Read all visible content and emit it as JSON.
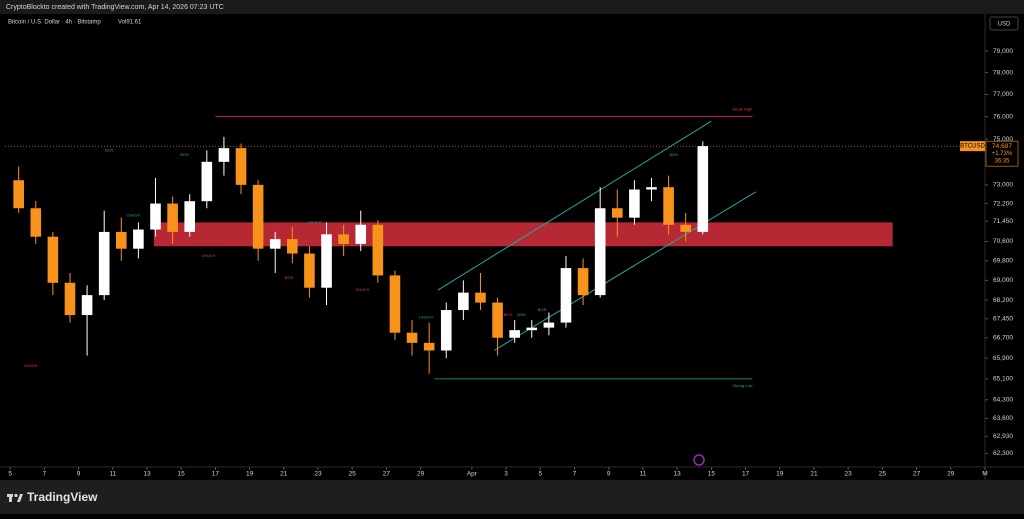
{
  "header": {
    "credit": "CryptoBlockto created with TradingView.com, Apr 14, 2026 07:23 UTC"
  },
  "footer": {
    "brand": "TradingView"
  },
  "chart_data": {
    "type": "candlestick",
    "title": "Bitcoin / U.S. Dollar · 4h · Bitstamp",
    "subtitle": "Vol91.61",
    "currency": "USD",
    "log_scale": true,
    "up_color": "#ffffff",
    "down_color": "#f7931a",
    "x": [
      0.5,
      1.5,
      2.5,
      3.5,
      4.5,
      5.5,
      6.5,
      7.5,
      8.5,
      9.5,
      10.5,
      11.5,
      12.5,
      13.5,
      14.5,
      15.5,
      16.5,
      17.5,
      18.5,
      19.5,
      20.5,
      21.5,
      22.5,
      23.5,
      24.5,
      25.5,
      26.5,
      27.5,
      28.5,
      29.5,
      30.5,
      31.5,
      32.5,
      33.5,
      34.5,
      35.5,
      36.5,
      37.5,
      38.5,
      39.5,
      40.5
    ],
    "open": [
      73200,
      72000,
      70800,
      68900,
      67600,
      68400,
      71000,
      70300,
      71100,
      72200,
      71000,
      72300,
      74000,
      74600,
      73000,
      70300,
      70700,
      70100,
      68700,
      70900,
      70500,
      71300,
      69200,
      66900,
      66500,
      66200,
      67800,
      68500,
      68100,
      66700,
      67000,
      67100,
      67300,
      69500,
      68400,
      72000,
      71600,
      72800,
      72900,
      71300,
      71000
    ],
    "high": [
      73800,
      72300,
      71000,
      69300,
      68800,
      71900,
      71600,
      71400,
      73300,
      72500,
      72600,
      74500,
      75100,
      74800,
      73200,
      71000,
      71200,
      70400,
      71400,
      71300,
      71900,
      71500,
      69400,
      67400,
      67300,
      68100,
      69000,
      69300,
      68300,
      67400,
      67400,
      67700,
      70000,
      69900,
      72900,
      72800,
      73200,
      73300,
      73400,
      71800,
      74900
    ],
    "low": [
      71800,
      70500,
      68400,
      67300,
      66000,
      68200,
      69800,
      69900,
      70800,
      70500,
      70800,
      72000,
      73400,
      72600,
      69800,
      69300,
      69700,
      68300,
      68000,
      70000,
      70200,
      68900,
      66600,
      66000,
      65300,
      65900,
      67400,
      67800,
      66000,
      66500,
      66700,
      66800,
      67100,
      68000,
      68300,
      70800,
      71300,
      72300,
      70900,
      70600,
      70900
    ],
    "close": [
      72000,
      70800,
      68900,
      67600,
      68400,
      71000,
      70300,
      71100,
      72200,
      71000,
      72300,
      74000,
      74600,
      73000,
      70300,
      70700,
      70100,
      68700,
      70900,
      70500,
      71300,
      69200,
      66900,
      66500,
      66200,
      67800,
      68500,
      68100,
      66700,
      67000,
      67100,
      67300,
      69500,
      68400,
      72000,
      71600,
      72800,
      72900,
      71300,
      71000,
      74687
    ],
    "xlim": [
      -0.3,
      57
    ],
    "ylim": [
      61800,
      80700
    ],
    "xticks": [
      {
        "value": 0,
        "label": "5"
      },
      {
        "value": 2,
        "label": "7"
      },
      {
        "value": 4,
        "label": "9"
      },
      {
        "value": 6,
        "label": "11"
      },
      {
        "value": 8,
        "label": "13"
      },
      {
        "value": 10,
        "label": "15"
      },
      {
        "value": 12,
        "label": "17"
      },
      {
        "value": 14,
        "label": "19"
      },
      {
        "value": 16,
        "label": "21"
      },
      {
        "value": 18,
        "label": "23"
      },
      {
        "value": 20,
        "label": "25"
      },
      {
        "value": 22,
        "label": "27"
      },
      {
        "value": 24,
        "label": "29"
      },
      {
        "value": 27,
        "label": "Apr"
      },
      {
        "value": 29,
        "label": "3"
      },
      {
        "value": 31,
        "label": "5"
      },
      {
        "value": 33,
        "label": "7"
      },
      {
        "value": 35,
        "label": "9"
      },
      {
        "value": 37,
        "label": "11"
      },
      {
        "value": 39,
        "label": "13"
      },
      {
        "value": 41,
        "label": "15"
      },
      {
        "value": 43,
        "label": "17"
      },
      {
        "value": 45,
        "label": "19"
      },
      {
        "value": 47,
        "label": "21"
      },
      {
        "value": 49,
        "label": "23"
      },
      {
        "value": 51,
        "label": "25"
      },
      {
        "value": 53,
        "label": "27"
      },
      {
        "value": 55,
        "label": "29"
      },
      {
        "value": 57,
        "label": "M"
      }
    ],
    "yticks": [
      {
        "value": 79000,
        "label": "79,000"
      },
      {
        "value": 78000,
        "label": "78,000"
      },
      {
        "value": 77000,
        "label": "77,000"
      },
      {
        "value": 76000,
        "label": "76,000"
      },
      {
        "value": 75000,
        "label": "75,000"
      },
      {
        "value": 73000,
        "label": "73,000"
      },
      {
        "value": 72200,
        "label": "72,200"
      },
      {
        "value": 71450,
        "label": "71,450"
      },
      {
        "value": 70600,
        "label": "70,600"
      },
      {
        "value": 69800,
        "label": "69,800"
      },
      {
        "value": 69000,
        "label": "69,000"
      },
      {
        "value": 68200,
        "label": "68,200"
      },
      {
        "value": 67450,
        "label": "67,450"
      },
      {
        "value": 66700,
        "label": "66,700"
      },
      {
        "value": 65900,
        "label": "65,900"
      },
      {
        "value": 65100,
        "label": "65,100"
      },
      {
        "value": 64300,
        "label": "64,300"
      },
      {
        "value": 63600,
        "label": "63,600"
      },
      {
        "value": 62930,
        "label": "62,930"
      },
      {
        "value": 62300,
        "label": "62,300"
      }
    ],
    "levels": [
      {
        "name": "Weak High",
        "value": 76000,
        "x": [
          12,
          43.4
        ],
        "color": "#f23645"
      },
      {
        "name": "Strong Low",
        "value": 65100,
        "x": [
          24.8,
          43.4
        ],
        "color": "#26a69a"
      }
    ],
    "zone": {
      "x": [
        8.4,
        51.6
      ],
      "y": [
        70400,
        71400
      ],
      "color": "#f23645"
    },
    "channel": [
      {
        "x": [
          25,
          41
        ],
        "y": [
          68600,
          75800
        ],
        "color": "#26a69a"
      },
      {
        "x": [
          28.3,
          43.6
        ],
        "y": [
          66200,
          72700
        ],
        "color": "#26a69a"
      }
    ],
    "annotations": [
      {
        "label": "BOS",
        "x": 5.8,
        "y": 74500,
        "color": "#26a69a"
      },
      {
        "label": "BOS",
        "x": 10.2,
        "y": 74300,
        "color": "#26a69a"
      },
      {
        "label": "CHoCH",
        "x": 7.2,
        "y": 71700,
        "color": "#26a69a"
      },
      {
        "label": "CHoCH",
        "x": 11.6,
        "y": 70000,
        "color": "#f23645"
      },
      {
        "label": "CHoCH",
        "x": 17.8,
        "y": 71400,
        "color": "#26a69a"
      },
      {
        "label": "BOS",
        "x": 16.3,
        "y": 69100,
        "color": "#f23645"
      },
      {
        "label": "CHoCH",
        "x": 20.6,
        "y": 68600,
        "color": "#f23645"
      },
      {
        "label": "CHoCH",
        "x": 1.2,
        "y": 65600,
        "color": "#f23645"
      },
      {
        "label": "CHoCH",
        "x": 24.3,
        "y": 67500,
        "color": "#26a69a"
      },
      {
        "label": "BOS",
        "x": 29.1,
        "y": 67600,
        "color": "#f23645"
      },
      {
        "label": "BOS",
        "x": 29.9,
        "y": 67600,
        "color": "#26a69a"
      },
      {
        "label": "BOS",
        "x": 31.1,
        "y": 67800,
        "color": "#26a69a"
      },
      {
        "label": "BOS",
        "x": 38.8,
        "y": 74300,
        "color": "#26a69a"
      }
    ],
    "last_price": {
      "symbol": "BTCUSD",
      "value": 74687,
      "value_label": "74,687",
      "change": "+1.73%",
      "countdown": "36:35",
      "color": "#f7931a"
    }
  }
}
